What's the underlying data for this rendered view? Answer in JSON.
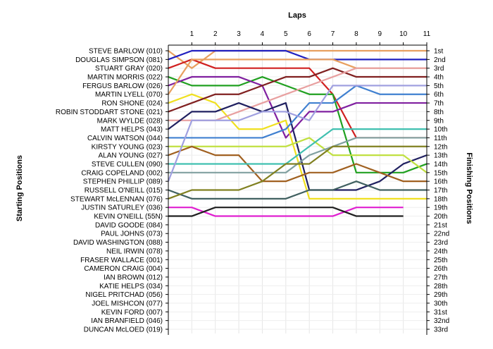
{
  "chart_data": {
    "type": "line",
    "title": "",
    "top_axis_title": "Laps",
    "left_axis_title": "Starting Positions",
    "right_axis_title": "Finishing Positions",
    "laps": [
      "1",
      "2",
      "3",
      "4",
      "5",
      "6",
      "7",
      "8",
      "9",
      "10",
      "11"
    ],
    "positions": [
      "1st",
      "2nd",
      "3rd",
      "4th",
      "5th",
      "6th",
      "7th",
      "8th",
      "9th",
      "10th",
      "11th",
      "12th",
      "13th",
      "14th",
      "15th",
      "16th",
      "17th",
      "18th",
      "19th",
      "20th",
      "21st",
      "22nd",
      "23rd",
      "24th",
      "25th",
      "26th",
      "27th",
      "28th",
      "29th",
      "30th",
      "31st",
      "32nd",
      "33rd"
    ],
    "starting_grid": [
      "STEVE BARLOW (010)",
      "DOUGLAS SIMPSON (081)",
      "STUART GRAY (020)",
      "MARTIN MORRIS (022)",
      "FERGUS BARLOW (026)",
      "MARTIN LYELL (070)",
      "RON SHONE (024)",
      "ROBIN STODDART STONE (021)",
      "MARK WYLDE (028)",
      "MATT HELPS (043)",
      "CALVIN WATSON (044)",
      "KIRSTY YOUNG (023)",
      "ALAN YOUNG (027)",
      "STEVE CULLEN (090)",
      "CRAIG COPELAND (002)",
      "STEPHEN PHILLIP (089)",
      "RUSSELL O'NEILL (015)",
      "STEWART McLENNAN (076)",
      "JUSTIN SATURLEY (036)",
      "KEVIN O'NEILL (55N)",
      "DAVID GOODE (084)",
      "PAUL JOHNS (073)",
      "DAVID WASHINGTON (088)",
      "NEIL IRWIN (078)",
      "FRASER WALLACE (001)",
      "CAMERON CRAIG (004)",
      "IAN BROWN (012)",
      "KATIE HELPS (034)",
      "NIGEL PRITCHAD (056)",
      "JOEL MISHCON (077)",
      "KEVIN FORD (007)",
      "IAN BRANFIELD (046)",
      "DUNCAN McLOED (019)"
    ],
    "x_range": [
      0,
      11
    ],
    "y_range": [
      1,
      33
    ],
    "grid": true,
    "series": [
      {
        "color": "#e8a060",
        "values": [
          1,
          3,
          1,
          1,
          1,
          1,
          1,
          1,
          1,
          1,
          1,
          1
        ]
      },
      {
        "color": "#2020c0",
        "values": [
          2,
          1,
          1,
          1,
          1,
          1,
          2,
          2,
          2,
          2,
          2,
          2
        ]
      },
      {
        "color": "#d02020",
        "values": [
          3,
          2,
          3,
          3,
          3,
          3,
          3,
          6,
          11,
          11,
          11,
          11
        ]
      },
      {
        "color": "#20a020",
        "values": [
          4,
          5,
          5,
          5,
          4,
          5,
          6,
          6,
          15,
          15,
          15,
          14
        ]
      },
      {
        "color": "#8020a0",
        "values": [
          5,
          4,
          4,
          4,
          5,
          11,
          8,
          8,
          7,
          7,
          7,
          7
        ]
      },
      {
        "color": "#e8a060",
        "values": [
          6,
          2,
          2,
          2,
          2,
          2,
          2,
          2,
          3,
          3,
          3,
          3
        ]
      },
      {
        "color": "#f0e020",
        "values": [
          7,
          6,
          7,
          10,
          10,
          9,
          18,
          18,
          18,
          18,
          18,
          18
        ]
      },
      {
        "color": "#802020",
        "values": [
          8,
          7,
          6,
          6,
          5,
          4,
          4,
          3,
          4,
          4,
          4,
          4
        ]
      },
      {
        "color": "#e8a0a0",
        "values": [
          9,
          9,
          9,
          8,
          7,
          6,
          5,
          4,
          3,
          3,
          3,
          3
        ]
      },
      {
        "color": "#202060",
        "values": [
          10,
          8,
          8,
          7,
          8,
          7,
          17,
          17,
          17,
          16,
          14,
          13
        ]
      },
      {
        "color": "#4080d0",
        "values": [
          11,
          11,
          11,
          11,
          11,
          10,
          7,
          7,
          5,
          6,
          6,
          6
        ]
      },
      {
        "color": "#c0e040",
        "values": [
          12,
          12,
          12,
          12,
          12,
          12,
          11,
          13,
          13,
          13,
          13,
          15
        ]
      },
      {
        "color": "#a06020",
        "values": [
          13,
          12,
          13,
          13,
          16,
          16,
          15,
          15,
          14,
          15,
          16,
          16
        ]
      },
      {
        "color": "#40c0b0",
        "values": [
          14,
          14,
          14,
          14,
          14,
          14,
          12,
          10,
          10,
          10,
          10,
          10
        ]
      },
      {
        "color": "#80a0a0",
        "values": [
          15,
          15,
          15,
          15,
          15,
          15,
          13,
          12,
          11,
          11,
          11,
          11
        ]
      },
      {
        "color": "#a0a0e0",
        "values": [
          16,
          9,
          9,
          9,
          8,
          8,
          9,
          5,
          5,
          5,
          5,
          5
        ]
      },
      {
        "color": "#406060",
        "values": [
          17,
          18,
          18,
          18,
          18,
          18,
          17,
          17,
          16,
          17,
          17,
          17
        ]
      },
      {
        "color": "#808020",
        "values": [
          18,
          17,
          17,
          17,
          16,
          14,
          14,
          12,
          12,
          12,
          12,
          12
        ]
      },
      {
        "color": "#e020d0",
        "values": [
          19,
          19,
          20,
          20,
          20,
          20,
          20,
          20,
          19,
          19,
          19
        ]
      },
      {
        "color": "#202020",
        "values": [
          20,
          20,
          19,
          19,
          19,
          19,
          19,
          19,
          20,
          20,
          20
        ]
      }
    ]
  }
}
